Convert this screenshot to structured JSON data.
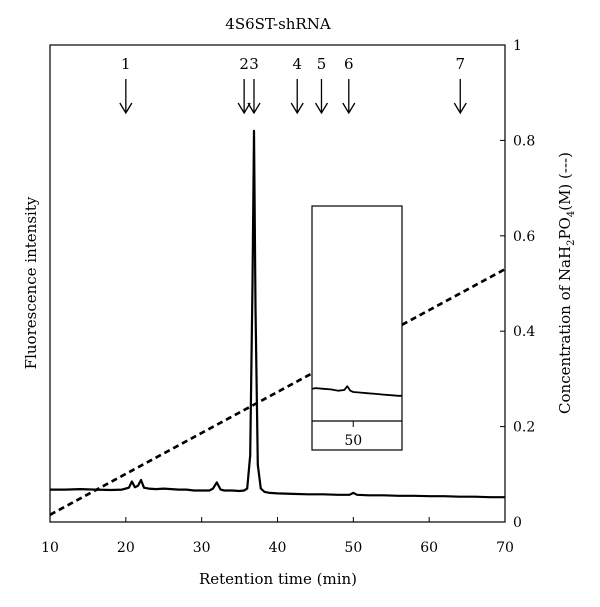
{
  "chart_data": {
    "type": "line",
    "title": "4S6ST-shRNA",
    "xlabel": "Retention time (min)",
    "ylabel_left": "Fluorescence intensity",
    "ylabel_right": "Concentration of NaH",
    "ylabel_right_sub": "2",
    "ylabel_right_mid": "PO",
    "ylabel_right_sub2": "4",
    "ylabel_right_tail": "(M) (---)",
    "xlim": [
      10,
      70
    ],
    "ylim_right": [
      0,
      1
    ],
    "x_ticks": [
      "10",
      "20",
      "30",
      "40",
      "50",
      "60",
      "70"
    ],
    "x_tick_values": [
      10,
      20,
      30,
      40,
      50,
      60,
      70
    ],
    "y_right_ticks": [
      "0",
      "0.2",
      "0.4",
      "0.6",
      "0.8",
      "1"
    ],
    "y_right_tick_values": [
      0,
      0.2,
      0.4,
      0.6,
      0.8,
      1
    ],
    "markers": [
      {
        "label": "1",
        "x": 20
      },
      {
        "label": "2",
        "x": 35.6
      },
      {
        "label": "3",
        "x": 36.9
      },
      {
        "label": "4",
        "x": 42.6
      },
      {
        "label": "5",
        "x": 45.8
      },
      {
        "label": "6",
        "x": 49.4
      },
      {
        "label": "7",
        "x": 64.1
      }
    ],
    "series": [
      {
        "style": "solid",
        "axis": "right",
        "x": [
          10,
          12,
          14,
          16,
          18,
          19.5,
          20.4,
          20.8,
          21.2,
          21.6,
          22.0,
          22.4,
          23,
          24,
          25,
          26,
          27,
          28,
          29,
          30,
          31,
          31.5,
          32.0,
          32.5,
          33,
          34,
          35,
          35.6,
          36.0,
          36.4,
          36.7,
          36.9,
          37.1,
          37.4,
          37.8,
          38.3,
          39,
          40,
          42,
          44,
          46,
          48,
          49.5,
          50,
          50.5,
          52,
          54,
          56,
          58,
          60,
          62,
          64,
          66,
          68,
          70
        ],
        "y": [
          0.068,
          0.068,
          0.069,
          0.068,
          0.067,
          0.068,
          0.072,
          0.085,
          0.073,
          0.076,
          0.088,
          0.072,
          0.07,
          0.069,
          0.07,
          0.069,
          0.068,
          0.068,
          0.066,
          0.066,
          0.066,
          0.07,
          0.083,
          0.068,
          0.066,
          0.066,
          0.065,
          0.066,
          0.07,
          0.14,
          0.5,
          0.82,
          0.45,
          0.12,
          0.07,
          0.063,
          0.061,
          0.06,
          0.059,
          0.058,
          0.058,
          0.057,
          0.057,
          0.061,
          0.057,
          0.056,
          0.056,
          0.055,
          0.055,
          0.054,
          0.054,
          0.053,
          0.053,
          0.052,
          0.052
        ]
      },
      {
        "style": "dashed",
        "axis": "right",
        "x": [
          10,
          70
        ],
        "y": [
          0.015,
          0.53
        ]
      }
    ],
    "inset": {
      "x_tick": "50",
      "x_tick_value": 50,
      "xlim": [
        44.5,
        56.5
      ],
      "x": [
        44.5,
        45,
        46,
        47,
        48,
        48.8,
        49.2,
        49.6,
        50,
        51,
        52,
        53,
        54,
        55,
        56,
        56.5
      ],
      "y": [
        0.5,
        0.51,
        0.5,
        0.49,
        0.47,
        0.48,
        0.54,
        0.47,
        0.45,
        0.44,
        0.43,
        0.42,
        0.41,
        0.4,
        0.39,
        0.39
      ]
    }
  }
}
